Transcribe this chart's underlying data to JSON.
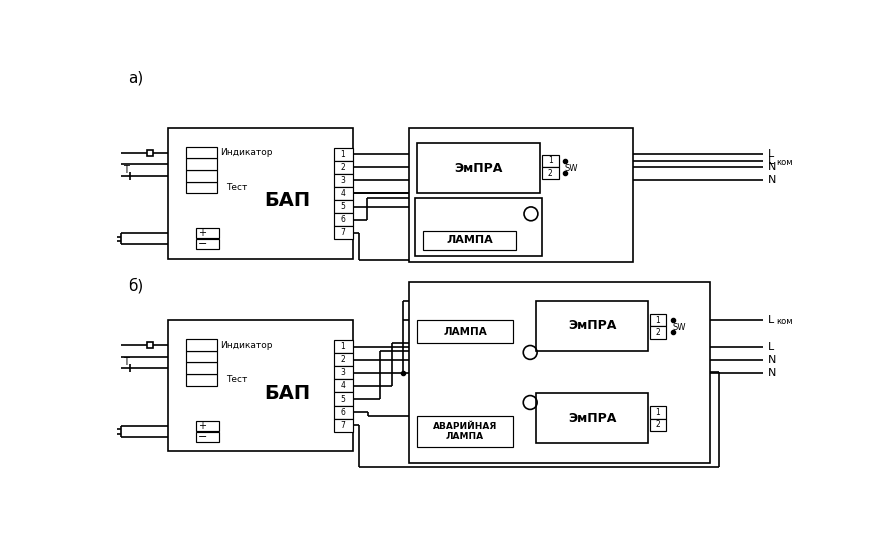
{
  "bg": "#ffffff",
  "lc": "#000000",
  "lw": 1.2,
  "tlw": 0.85,
  "label_a": "а)",
  "label_b": "б)",
  "bap": "БАП",
  "empra": "ЭмПРА",
  "lampa": "ЛАМПА",
  "indikator": "Индикатор",
  "test": "Тест",
  "avarijnaya": "АВАРИЙНАЯ\nЛАМПА",
  "L": "L",
  "N": "N",
  "Lkom": "L",
  "kom": "ком",
  "SW": "SW",
  "terms": [
    "1",
    "2",
    "3",
    "4",
    "5",
    "6",
    "7"
  ]
}
